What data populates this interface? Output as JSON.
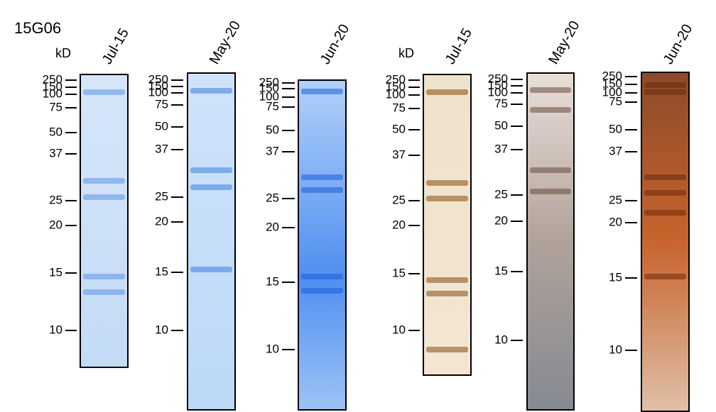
{
  "title": "15G06",
  "lanes": [
    {
      "label": "Jul-15",
      "unit": "kD",
      "markers": [
        250,
        150,
        100,
        75,
        50,
        37,
        25,
        20,
        15,
        10
      ]
    },
    {
      "label": "May-20",
      "markers": [
        250,
        150,
        100,
        75,
        50,
        37,
        25,
        20,
        15,
        10
      ]
    },
    {
      "label": "Jun-20",
      "markers": [
        250,
        150,
        100,
        75,
        50,
        37,
        25,
        20,
        15,
        10
      ]
    },
    {
      "label": "Jul-15",
      "unit": "kD",
      "markers": [
        250,
        150,
        100,
        75,
        50,
        37,
        25,
        20,
        15,
        10
      ]
    },
    {
      "label": "May-20",
      "markers": [
        250,
        150,
        100,
        75,
        50,
        37,
        25,
        20,
        15,
        10
      ]
    },
    {
      "label": "Jun-20",
      "markers": [
        250,
        150,
        100,
        75,
        50,
        37,
        25,
        20,
        15,
        10
      ]
    }
  ]
}
